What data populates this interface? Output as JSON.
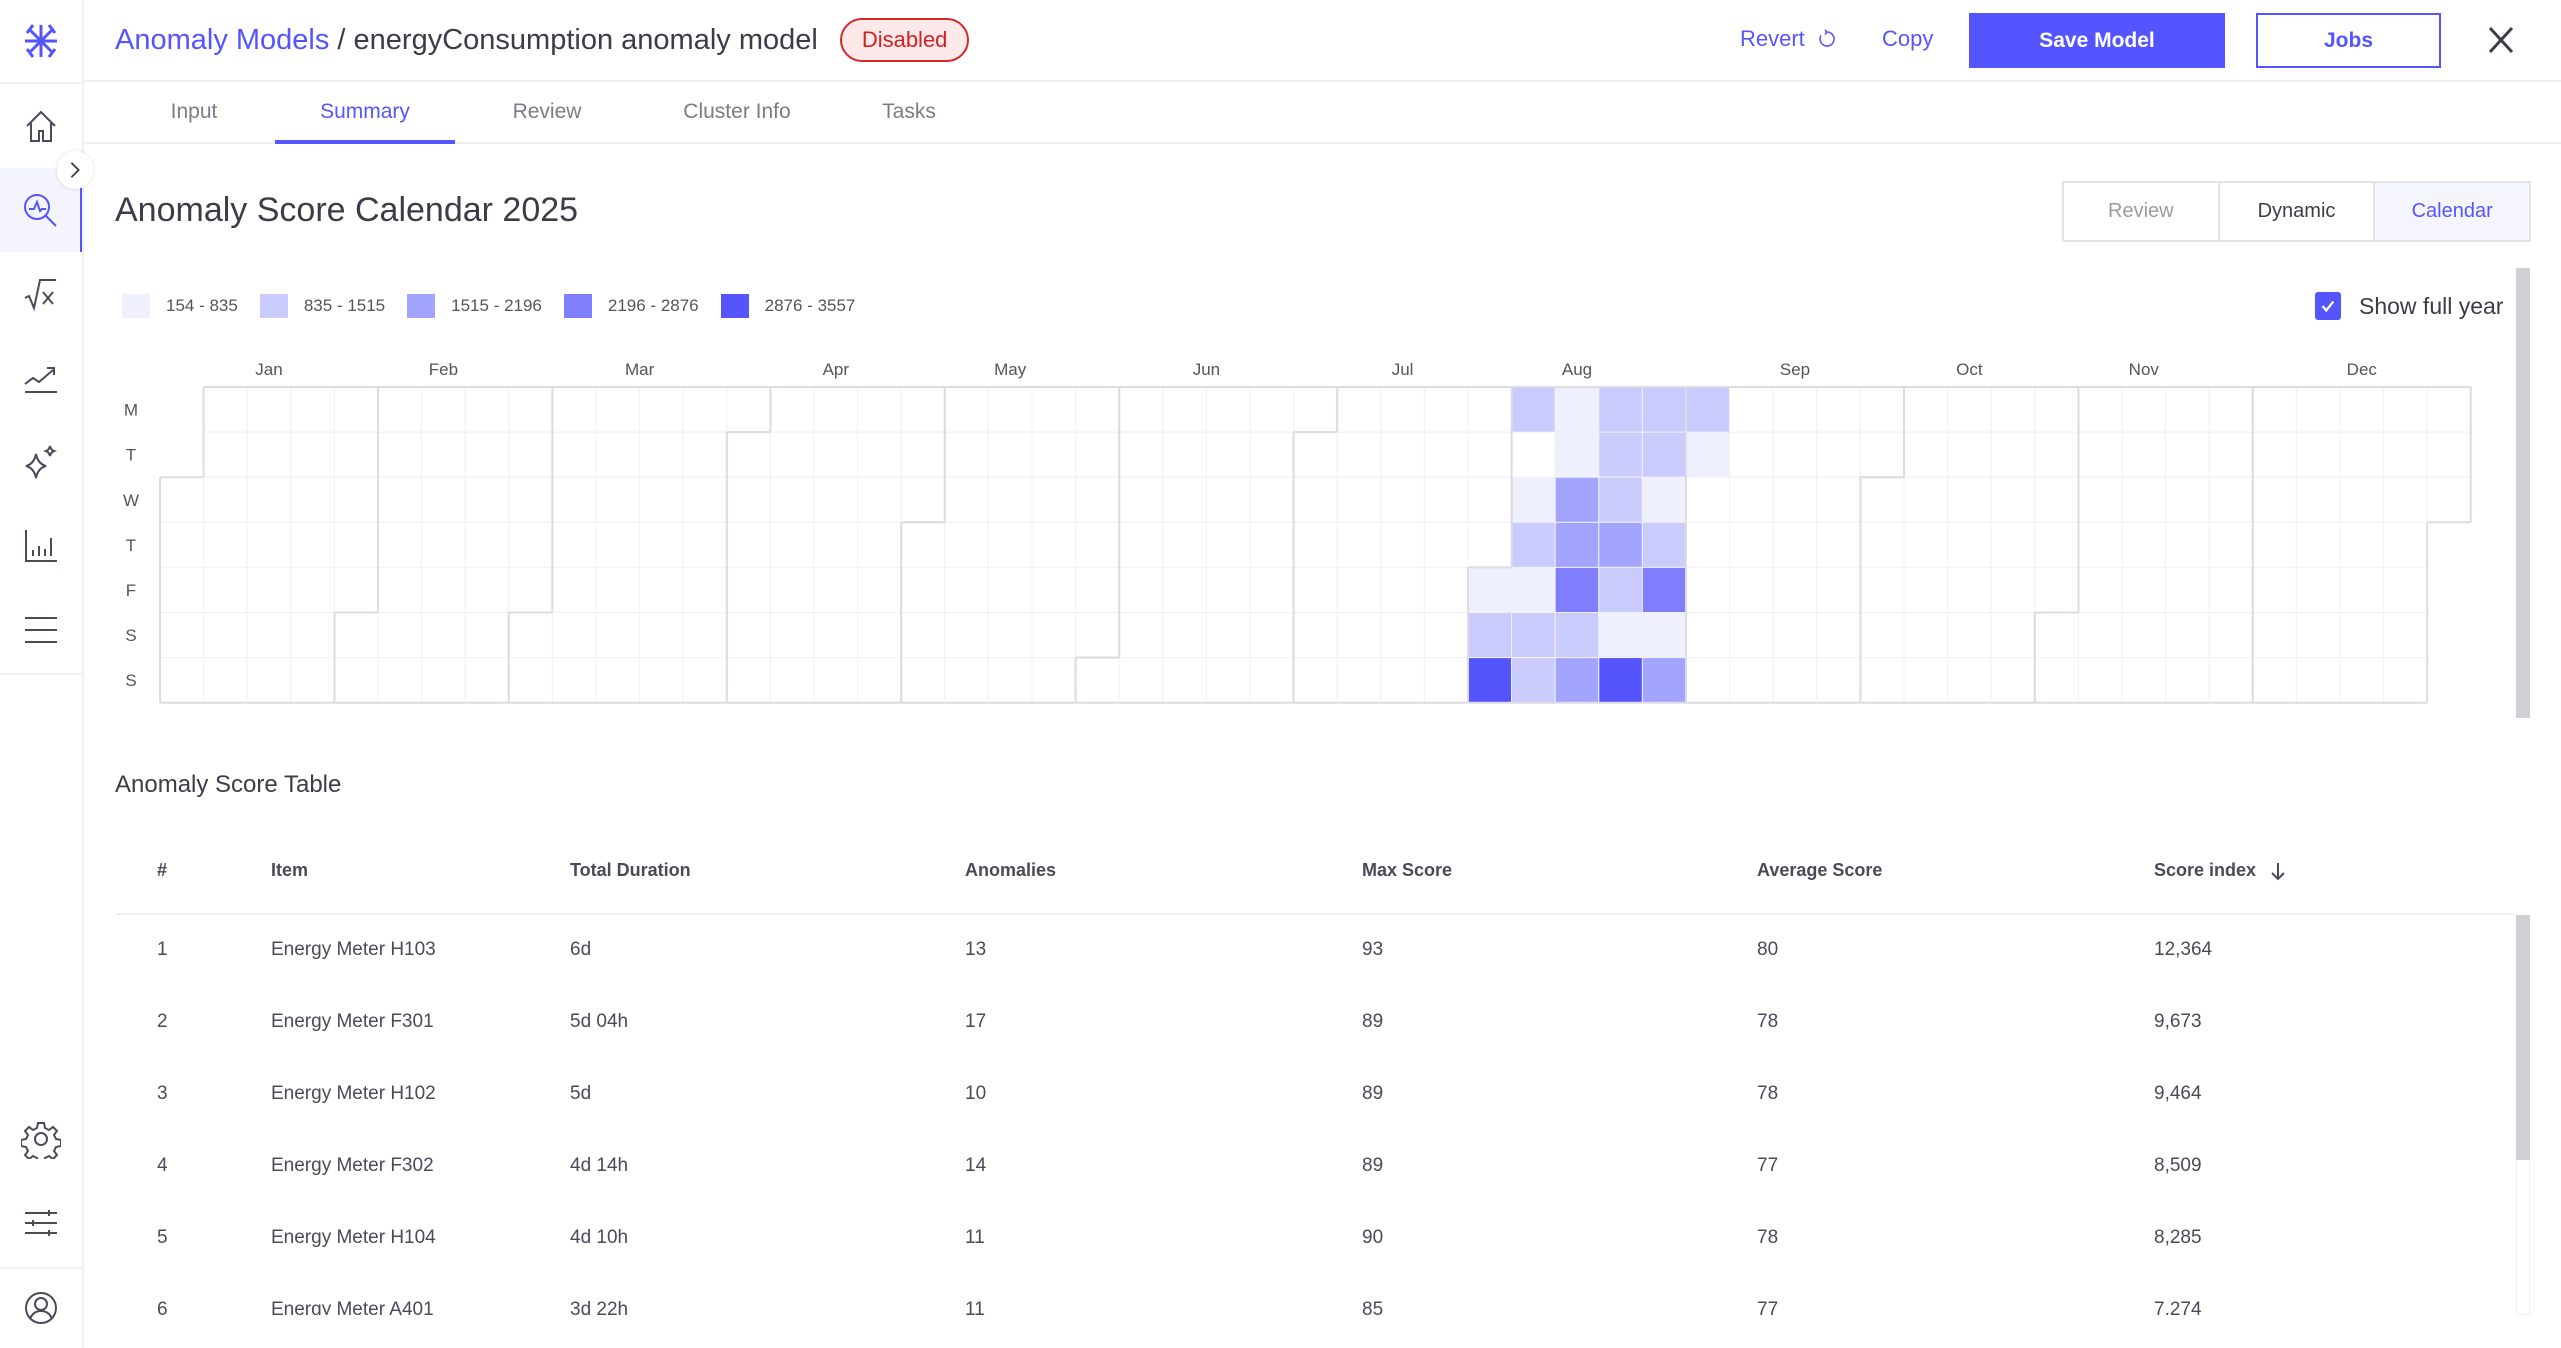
{
  "header": {
    "breadcrumb_root": "Anomaly Models",
    "separator": " / ",
    "model_name": "energyConsumption anomaly model",
    "status_badge": "Disabled",
    "revert_label": "Revert",
    "copy_label": "Copy",
    "save_label": "Save Model",
    "jobs_label": "Jobs"
  },
  "tabs": [
    {
      "label": "Input"
    },
    {
      "label": "Summary",
      "active": true
    },
    {
      "label": "Review"
    },
    {
      "label": "Cluster Info"
    },
    {
      "label": "Tasks"
    }
  ],
  "sidebar": {
    "items": [
      "home-icon",
      "anomaly-search-icon",
      "formula-icon",
      "trend-icon",
      "sparkle-icon",
      "bar-chart-icon",
      "menu-icon"
    ],
    "bottom": [
      "gear-icon",
      "sliders-icon",
      "user-icon"
    ]
  },
  "calendar": {
    "title": "Anomaly Score Calendar 2025",
    "view_options": [
      {
        "label": "Review",
        "state": "disabled"
      },
      {
        "label": "Dynamic",
        "state": "normal"
      },
      {
        "label": "Calendar",
        "state": "selected"
      }
    ],
    "show_full_year_label": "Show full year",
    "show_full_year": true
  },
  "chart_data": {
    "type": "heatmap",
    "title": "Anomaly Score Calendar 2025",
    "year": 2025,
    "months": [
      "Jan",
      "Feb",
      "Mar",
      "Apr",
      "May",
      "Jun",
      "Jul",
      "Aug",
      "Sep",
      "Oct",
      "Nov",
      "Dec"
    ],
    "weekdays": [
      "M",
      "T",
      "W",
      "T",
      "F",
      "S",
      "S"
    ],
    "legend": [
      {
        "label": "154 - 835",
        "color": "#eef1fd"
      },
      {
        "label": "835 - 1515",
        "color": "#c9cbfd"
      },
      {
        "label": "1515 - 2196",
        "color": "#a3a4fe"
      },
      {
        "label": "2196 - 2876",
        "color": "#7f7ffe"
      },
      {
        "label": "2876 - 3557",
        "color": "#5555fe"
      }
    ],
    "legend_placement": "top-left",
    "bin_levels": {
      "2025-08-01": 1,
      "2025-08-02": 2,
      "2025-08-03": 5,
      "2025-08-04": 2,
      "2025-08-06": 1,
      "2025-08-07": 2,
      "2025-08-08": 1,
      "2025-08-09": 2,
      "2025-08-10": 2,
      "2025-08-11": 1,
      "2025-08-12": 1,
      "2025-08-13": 3,
      "2025-08-14": 3,
      "2025-08-15": 4,
      "2025-08-16": 2,
      "2025-08-17": 3,
      "2025-08-18": 2,
      "2025-08-19": 2,
      "2025-08-20": 2,
      "2025-08-21": 3,
      "2025-08-22": 2,
      "2025-08-23": 1,
      "2025-08-24": 5,
      "2025-08-25": 2,
      "2025-08-26": 2,
      "2025-08-27": 1,
      "2025-08-28": 2,
      "2025-08-29": 4,
      "2025-08-30": 1,
      "2025-08-31": 3,
      "2025-09-01": 2,
      "2025-09-02": 1
    }
  },
  "table": {
    "title": "Anomaly Score Table",
    "columns": [
      "#",
      "Item",
      "Total Duration",
      "Anomalies",
      "Max Score",
      "Average Score",
      "Score index"
    ],
    "sort_column": "Score index",
    "sort_direction": "descending",
    "rows": [
      [
        "1",
        "Energy Meter H103",
        "6d",
        "13",
        "93",
        "80",
        "12,364"
      ],
      [
        "2",
        "Energy Meter F301",
        "5d 04h",
        "17",
        "89",
        "78",
        "9,673"
      ],
      [
        "3",
        "Energy Meter H102",
        "5d",
        "10",
        "89",
        "78",
        "9,464"
      ],
      [
        "4",
        "Energy Meter F302",
        "4d 14h",
        "14",
        "89",
        "77",
        "8,509"
      ],
      [
        "5",
        "Energy Meter H104",
        "4d 10h",
        "11",
        "90",
        "78",
        "8,285"
      ],
      [
        "6",
        "Energy Meter A401",
        "3d 22h",
        "11",
        "85",
        "77",
        "7,274"
      ]
    ]
  },
  "colors": {
    "accent": "#5555ff",
    "danger": "#d32020"
  }
}
